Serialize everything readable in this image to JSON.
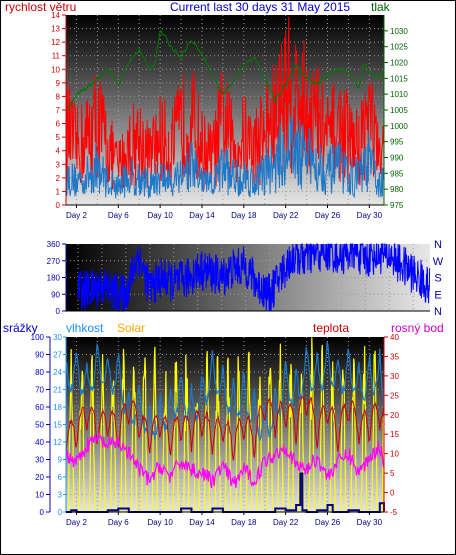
{
  "chart_data": [
    {
      "type": "line",
      "title": "Current last 30 days 31 May 2015",
      "left_axis_label": "rychlost větru",
      "right_axis_label": "tlak",
      "x_tick_labels": [
        "Day 2",
        "Day 6",
        "Day 10",
        "Day 14",
        "Day 18",
        "Day 22",
        "Day 26",
        "Day 30"
      ],
      "x_ticks_days": [
        2,
        6,
        10,
        14,
        18,
        22,
        26,
        30
      ],
      "xlim": [
        1,
        31.4
      ],
      "left_ylim": [
        0,
        14
      ],
      "left_ticks": [
        0,
        1,
        2,
        3,
        4,
        5,
        6,
        7,
        8,
        9,
        10,
        11,
        12,
        13,
        14
      ],
      "right_ylim": [
        975,
        1035
      ],
      "right_ticks": [
        975,
        980,
        985,
        990,
        995,
        1000,
        1005,
        1010,
        1015,
        1020,
        1025,
        1030
      ],
      "colors": {
        "gust": "#ff0000",
        "wind": "#1e78c8",
        "pressure": "#007a00",
        "left_axis": "#cc0000",
        "right_axis": "#006400",
        "title": "#0000cc"
      },
      "pressure": {
        "x": [
          1.2,
          2,
          3,
          4,
          5,
          6,
          7,
          8,
          9,
          9.5,
          10,
          10.5,
          11,
          12,
          13,
          14,
          15,
          16,
          17,
          18,
          19,
          20,
          21,
          22,
          23,
          24,
          25,
          26,
          27,
          28,
          29,
          29.5,
          30,
          30.5,
          31,
          31.4
        ],
        "y": [
          1005,
          1010,
          1012,
          1015,
          1018,
          1013,
          1020,
          1024,
          1018,
          1020,
          1030,
          1028,
          1025,
          1022,
          1027,
          1023,
          1016,
          1010,
          1014,
          1019,
          1022,
          1015,
          1008,
          1013,
          1019,
          1015,
          1013,
          1016,
          1018,
          1017,
          1012,
          1020,
          1017,
          1016,
          1015,
          1018
        ]
      },
      "gust": {
        "x": [
          1,
          2,
          3,
          4,
          5,
          6,
          7,
          8,
          9,
          10,
          11,
          12,
          13,
          14,
          15,
          16,
          17,
          18,
          19,
          20,
          21,
          22,
          23,
          24,
          25,
          26,
          27,
          28,
          29,
          30,
          31,
          31.4
        ],
        "y": [
          8,
          6,
          7,
          9,
          6,
          4,
          6,
          7,
          5,
          7,
          6,
          8,
          9,
          6,
          5,
          9,
          6,
          7,
          6,
          8,
          9,
          12,
          11,
          10,
          9,
          7,
          8,
          7,
          6,
          10,
          4,
          6
        ]
      },
      "wind": {
        "x": [
          1,
          2,
          3,
          4,
          5,
          6,
          7,
          8,
          9,
          10,
          11,
          12,
          13,
          14,
          15,
          16,
          17,
          18,
          19,
          20,
          21,
          22,
          23,
          24,
          25,
          26,
          27,
          28,
          29,
          30,
          31,
          31.4
        ],
        "y": [
          3,
          2.5,
          3,
          4,
          2.5,
          2,
          3,
          3,
          2,
          3,
          2.5,
          3.5,
          4,
          2.5,
          2,
          4,
          3,
          3,
          2.5,
          3.5,
          4,
          6,
          5.5,
          5,
          4.5,
          3.5,
          4,
          3,
          3,
          4.5,
          2,
          3
        ]
      }
    },
    {
      "type": "line",
      "title": "",
      "x_tick_labels": [],
      "xlim": [
        1,
        31.4
      ],
      "left_ylim": [
        0,
        360
      ],
      "left_ticks": [
        0,
        90,
        180,
        270,
        360
      ],
      "right_labels": [
        "N",
        "W",
        "S",
        "E",
        "N"
      ],
      "colors": {
        "direction": "#0000ff",
        "axis": "#0000aa"
      },
      "direction": {
        "x": [
          2,
          3,
          4,
          5,
          6,
          7,
          8,
          9,
          10,
          11,
          12,
          13,
          14,
          15,
          16,
          17,
          18,
          19,
          20,
          21,
          22,
          23,
          24,
          25,
          26,
          27,
          28,
          29,
          30,
          31,
          31.4
        ],
        "y": [
          120,
          110,
          140,
          100,
          90,
          300,
          120,
          180,
          150,
          170,
          220,
          210,
          180,
          230,
          240,
          140,
          90,
          200,
          300,
          290,
          310,
          320,
          300,
          330,
          280,
          310,
          300,
          250,
          200,
          150,
          120
        ]
      }
    },
    {
      "type": "line",
      "title": "",
      "left_axis_label": "srážky",
      "labels": [
        "vlhkost",
        "Solar",
        "teplota",
        "rosný bod"
      ],
      "x_tick_labels": [
        "Day 2",
        "Day 6",
        "Day 10",
        "Day 14",
        "Day 18",
        "Day 22",
        "Day 26",
        "Day 30"
      ],
      "x_ticks_days": [
        2,
        6,
        10,
        14,
        18,
        22,
        26,
        30
      ],
      "xlim": [
        1,
        31.4
      ],
      "rain_ylim": [
        0,
        100
      ],
      "rain_ticks": [
        0,
        10,
        20,
        30,
        40,
        50,
        60,
        70,
        80,
        90,
        100
      ],
      "humidity_ylim": [
        0,
        30
      ],
      "humidity_ticks": [
        0,
        3,
        6,
        9,
        12,
        15,
        18,
        21,
        24,
        27,
        30
      ],
      "temp_ylim": [
        -5,
        40
      ],
      "temp_ticks": [
        -5,
        0,
        5,
        10,
        15,
        20,
        25,
        30,
        35,
        40
      ],
      "colors": {
        "rain": "#00008b",
        "humidity": "#1e78c8",
        "solar": "#ffff00",
        "temperature": "#cc0000",
        "dewpoint": "#ff00ff",
        "srazky": "#0000cc",
        "vlhkost": "#1e90ff",
        "solar_label": "#ffa500",
        "teplota": "#cc0000",
        "dewpoint_label": "#cc00cc"
      },
      "humidity": {
        "x": [
          1,
          2,
          3,
          4,
          5,
          6,
          7,
          8,
          9,
          10,
          11,
          12,
          13,
          14,
          15,
          16,
          17,
          18,
          19,
          20,
          21,
          22,
          23,
          24,
          25,
          26,
          27,
          28,
          29,
          30,
          31,
          31.4
        ],
        "y": [
          88,
          95,
          85,
          97,
          90,
          92,
          70,
          75,
          62,
          68,
          72,
          82,
          72,
          80,
          92,
          85,
          75,
          80,
          68,
          62,
          70,
          88,
          80,
          96,
          90,
          98,
          88,
          95,
          85,
          90,
          92,
          80
        ]
      },
      "temperature": {
        "x": [
          1,
          2,
          3,
          4,
          5,
          6,
          7,
          8,
          9,
          10,
          11,
          12,
          13,
          14,
          15,
          16,
          17,
          18,
          19,
          20,
          21,
          22,
          23,
          24,
          25,
          26,
          27,
          28,
          29,
          30,
          31,
          31.4
        ],
        "y": [
          14,
          15,
          20,
          16,
          18,
          15,
          21,
          17,
          14,
          18,
          13,
          17,
          15,
          18,
          14,
          16,
          12,
          17,
          13,
          22,
          18,
          20,
          17,
          24,
          15,
          21,
          14,
          22,
          16,
          17,
          20,
          18
        ]
      },
      "dewpoint": {
        "x": [
          1,
          2,
          3,
          4,
          5,
          6,
          7,
          8,
          9,
          10,
          11,
          12,
          13,
          14,
          15,
          16,
          17,
          18,
          19,
          20,
          21,
          22,
          23,
          24,
          25,
          26,
          27,
          28,
          29,
          30,
          31,
          31.4
        ],
        "y": [
          10,
          8,
          12,
          14,
          12,
          13,
          10,
          6,
          3,
          7,
          4,
          8,
          6,
          5,
          3,
          7,
          2,
          6,
          3,
          8,
          10,
          12,
          7,
          6,
          9,
          4,
          8,
          10,
          5,
          9,
          12,
          8
        ]
      },
      "rain": {
        "x": [
          1,
          1.5,
          2,
          3,
          4,
          5,
          6,
          7,
          8,
          9,
          10,
          11,
          12,
          13,
          14,
          15,
          16,
          17,
          18,
          19,
          20,
          21,
          22,
          23,
          23.4,
          23.6,
          24,
          25,
          26,
          26.5,
          27,
          28,
          29,
          30,
          31,
          31.4
        ],
        "y": [
          0,
          1,
          0,
          0,
          0,
          1,
          2,
          0,
          0,
          0,
          0,
          0,
          2,
          0,
          0,
          2,
          0,
          0,
          0,
          0,
          0,
          2,
          1,
          4,
          22,
          1,
          0,
          1,
          4,
          0,
          0,
          1,
          0,
          0,
          5,
          0
        ]
      }
    }
  ]
}
